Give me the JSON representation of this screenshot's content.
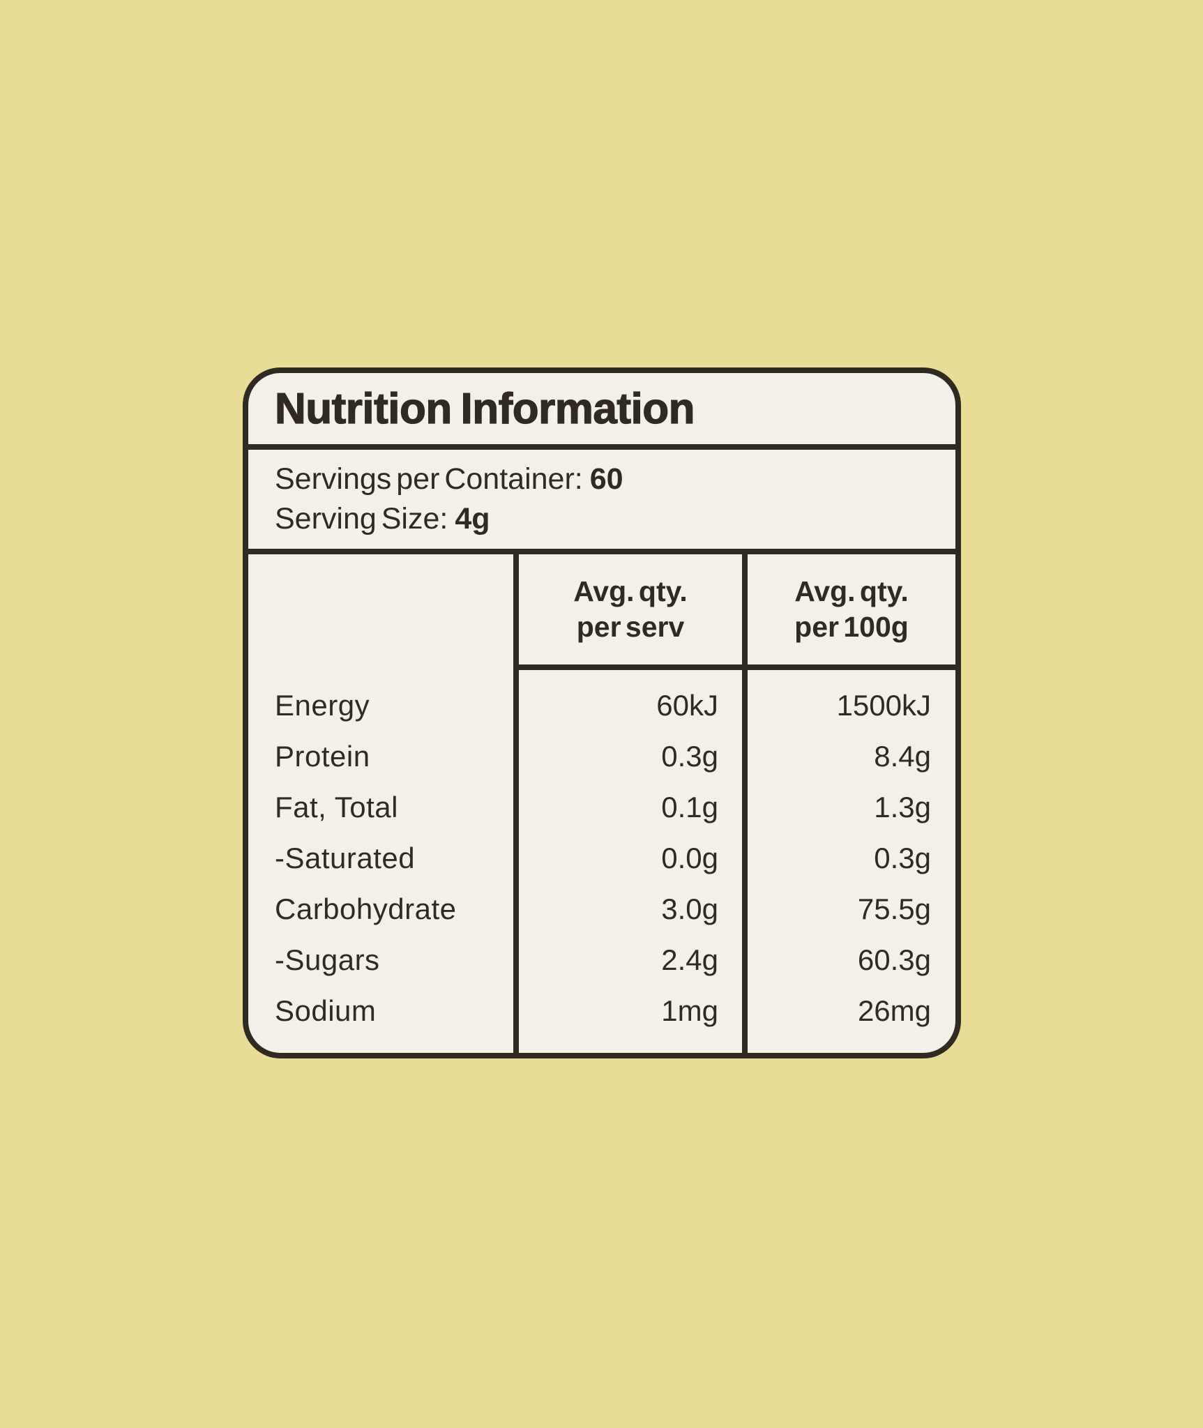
{
  "colors": {
    "background": "#e9dc97",
    "card": "#f3efe9",
    "ink": "#312a20"
  },
  "label": {
    "title": "Nutrition Information",
    "servings_per_container": {
      "label": "Servings per Container:",
      "value": "60"
    },
    "serving_size": {
      "label": "Serving Size:",
      "value": "4g"
    },
    "table": {
      "headers": [
        {
          "line1": "Avg. qty.",
          "line2": "per serv"
        },
        {
          "line1": "Avg. qty.",
          "line2": "per 100g"
        }
      ],
      "rows": [
        {
          "name": "Energy",
          "per_serv": "60kJ",
          "per_100g": "1500kJ"
        },
        {
          "name": "Protein",
          "per_serv": "0.3g",
          "per_100g": "8.4g"
        },
        {
          "name": "Fat, Total",
          "per_serv": "0.1g",
          "per_100g": "1.3g"
        },
        {
          "name": "-Saturated",
          "per_serv": "0.0g",
          "per_100g": "0.3g"
        },
        {
          "name": "Carbohydrate",
          "per_serv": "3.0g",
          "per_100g": "75.5g"
        },
        {
          "name": "-Sugars",
          "per_serv": "2.4g",
          "per_100g": "60.3g"
        },
        {
          "name": "Sodium",
          "per_serv": "1mg",
          "per_100g": "26mg"
        }
      ]
    }
  }
}
